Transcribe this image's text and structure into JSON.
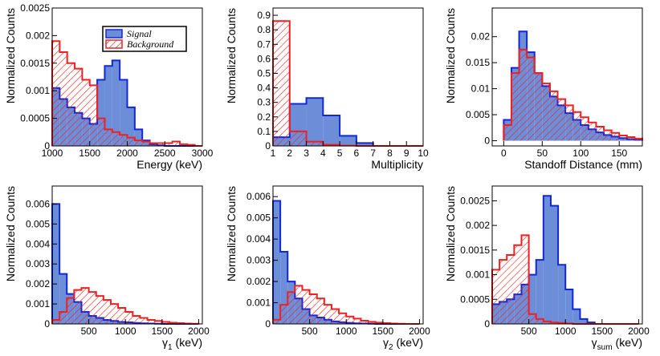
{
  "chart_data": [
    {
      "type": "histogram",
      "xlabel": "Energy (keV)",
      "ylabel": "Normalized Counts",
      "bins": [
        1000,
        1100,
        1200,
        1300,
        1400,
        1500,
        1600,
        1700,
        1800,
        1900,
        2000,
        2100,
        2200,
        2300,
        2400,
        2500,
        2600,
        2700,
        2800,
        2900,
        3000
      ],
      "xlim": [
        1000,
        3000
      ],
      "xticks": [
        1000,
        1500,
        2000,
        2500,
        3000
      ],
      "ylim": [
        0,
        0.0025
      ],
      "yticks": [
        0,
        0.0005,
        0.001,
        0.0015,
        0.002,
        0.0025
      ],
      "legend": "upper center",
      "series": [
        {
          "name": "Signal",
          "color": "#1228d8",
          "fill": "#6c8ed8",
          "values": [
            0.00105,
            0.00085,
            0.0007,
            0.0006,
            0.0005,
            0.0004,
            0.0012,
            0.00145,
            0.00155,
            0.0012,
            0.0007,
            0.0003,
            0.0001,
            3e-05,
            1e-05,
            0,
            0,
            0,
            0,
            0
          ]
        },
        {
          "name": "Background",
          "color": "#f02020",
          "hatch": true,
          "values": [
            0.0019,
            0.0017,
            0.0015,
            0.0014,
            0.0012,
            0.0011,
            0.0005,
            0.0003,
            0.00025,
            0.0002,
            0.00015,
            0.0001,
            8e-05,
            5e-05,
            5e-05,
            5e-05,
            8e-05,
            3e-05,
            2e-05,
            0
          ]
        }
      ]
    },
    {
      "type": "histogram",
      "xlabel": "Multiplicity",
      "ylabel": "Normalized Counts",
      "bins": [
        1,
        2,
        3,
        4,
        5,
        6,
        7,
        8,
        9,
        10
      ],
      "xlim": [
        1,
        10
      ],
      "xticks": [
        1,
        2,
        3,
        4,
        5,
        6,
        7,
        8,
        9,
        10
      ],
      "ylim": [
        0,
        0.95
      ],
      "yticks": [
        0,
        0.1,
        0.2,
        0.3,
        0.4,
        0.5,
        0.6,
        0.7,
        0.8,
        0.9
      ],
      "series": [
        {
          "name": "Signal",
          "color": "#1228d8",
          "fill": "#6c8ed8",
          "values": [
            0.06,
            0.29,
            0.33,
            0.21,
            0.07,
            0.02,
            0,
            0,
            0
          ]
        },
        {
          "name": "Background",
          "color": "#f02020",
          "hatch": true,
          "values": [
            0.86,
            0.1,
            0.03,
            0.008,
            0.002,
            0,
            0,
            0,
            0
          ]
        }
      ]
    },
    {
      "type": "histogram",
      "xlabel": "Standoff Distance (mm)",
      "ylabel": "Normalized Counts",
      "bins": [
        0,
        10,
        20,
        30,
        40,
        50,
        60,
        70,
        80,
        90,
        100,
        110,
        120,
        130,
        140,
        150,
        160,
        170,
        180
      ],
      "xlim": [
        -15,
        180
      ],
      "xticks": [
        0,
        50,
        100,
        150
      ],
      "ylim": [
        -0.001,
        0.0255
      ],
      "yticks": [
        0,
        0.005,
        0.01,
        0.015,
        0.02
      ],
      "series": [
        {
          "name": "Signal",
          "color": "#1228d8",
          "fill": "#6c8ed8",
          "values": [
            0.004,
            0.014,
            0.021,
            0.017,
            0.013,
            0.0105,
            0.0085,
            0.0068,
            0.0053,
            0.004,
            0.003,
            0.0022,
            0.0016,
            0.0011,
            0.0008,
            0.0005,
            0.0003,
            0.0002
          ]
        },
        {
          "name": "Background",
          "color": "#f02020",
          "hatch": true,
          "values": [
            0.003,
            0.013,
            0.0175,
            0.016,
            0.013,
            0.011,
            0.0095,
            0.008,
            0.0068,
            0.0055,
            0.0045,
            0.0035,
            0.0027,
            0.002,
            0.0015,
            0.001,
            0.0007,
            0.0004
          ]
        }
      ]
    },
    {
      "type": "histogram",
      "xlabel": [
        "γ",
        "1",
        "(keV)"
      ],
      "ylabel": "Normalized Counts",
      "bins": [
        0,
        100,
        200,
        300,
        400,
        500,
        600,
        700,
        800,
        900,
        1000,
        1100,
        1200,
        1300,
        1400,
        1500,
        1600,
        1700,
        1800,
        1900,
        2000
      ],
      "xlim": [
        0,
        2050
      ],
      "xticks": [
        500,
        1000,
        1500,
        2000
      ],
      "ylim": [
        0,
        0.0069
      ],
      "yticks": [
        0,
        0.001,
        0.002,
        0.003,
        0.004,
        0.005,
        0.006
      ],
      "series": [
        {
          "name": "Signal",
          "color": "#1228d8",
          "fill": "#6c8ed8",
          "values": [
            0.006,
            0.0025,
            0.0015,
            0.0011,
            0.0006,
            0.0004,
            0.0003,
            0.0002,
            0.00015,
            0.0001,
            8e-05,
            5e-05,
            3e-05,
            2e-05,
            1e-05,
            0,
            0,
            0,
            0,
            0
          ]
        },
        {
          "name": "Background",
          "color": "#f02020",
          "hatch": true,
          "values": [
            0.0002,
            0.0006,
            0.0013,
            0.0017,
            0.0018,
            0.0016,
            0.0014,
            0.0012,
            0.001,
            0.0008,
            0.0006,
            0.0004,
            0.0003,
            0.0002,
            0.00015,
            0.0001,
            6e-05,
            4e-05,
            2e-05,
            1e-05
          ]
        }
      ]
    },
    {
      "type": "histogram",
      "xlabel": [
        "γ",
        "2",
        "(keV)"
      ],
      "ylabel": "Normalized Counts",
      "bins": [
        0,
        100,
        200,
        300,
        400,
        500,
        600,
        700,
        800,
        900,
        1000,
        1100,
        1200,
        1300,
        1400,
        1500,
        1600,
        1700,
        1800,
        1900,
        2000
      ],
      "xlim": [
        0,
        2050
      ],
      "xticks": [
        500,
        1000,
        1500,
        2000
      ],
      "ylim": [
        0,
        0.0065
      ],
      "yticks": [
        0,
        0.001,
        0.002,
        0.003,
        0.004,
        0.005,
        0.006
      ],
      "series": [
        {
          "name": "Signal",
          "color": "#1228d8",
          "fill": "#6c8ed8",
          "values": [
            0.0058,
            0.0034,
            0.002,
            0.0012,
            0.0007,
            0.0004,
            0.0003,
            0.0002,
            0.00012,
            8e-05,
            5e-05,
            3e-05,
            2e-05,
            1e-05,
            0,
            0,
            0,
            0,
            0,
            0
          ]
        },
        {
          "name": "Background",
          "color": "#f02020",
          "hatch": true,
          "values": [
            0.0002,
            0.0009,
            0.0015,
            0.0018,
            0.0016,
            0.0014,
            0.0012,
            0.0009,
            0.0007,
            0.0005,
            0.00035,
            0.00025,
            0.00015,
            0.0001,
            6e-05,
            4e-05,
            2e-05,
            1e-05,
            0,
            0
          ]
        }
      ]
    },
    {
      "type": "histogram",
      "xlabel": [
        "γ",
        "sum",
        "(keV)"
      ],
      "ylabel": "Normalized Counts",
      "bins": [
        0,
        100,
        200,
        300,
        400,
        500,
        600,
        700,
        800,
        900,
        1000,
        1100,
        1200,
        1300,
        1400,
        1500,
        1600,
        1700,
        1800,
        1900,
        2000
      ],
      "xlim": [
        0,
        2050
      ],
      "xticks": [
        500,
        1000,
        1500,
        2000
      ],
      "ylim": [
        0,
        0.0028
      ],
      "yticks": [
        0,
        0.0005,
        0.001,
        0.0015,
        0.002,
        0.0025
      ],
      "series": [
        {
          "name": "Signal",
          "color": "#1228d8",
          "fill": "#6c8ed8",
          "values": [
            0.0004,
            0.00045,
            0.0005,
            0.0006,
            0.0008,
            0.001,
            0.0013,
            0.0026,
            0.0024,
            0.0012,
            0.0007,
            0.0003,
            0.0001,
            3e-05,
            0,
            0,
            0,
            0,
            0,
            0
          ]
        },
        {
          "name": "Background",
          "color": "#f02020",
          "hatch": true,
          "values": [
            0.0011,
            0.0013,
            0.0014,
            0.0016,
            0.0018,
            0.0002,
            0.0001,
            5e-05,
            3e-05,
            2e-05,
            1e-05,
            0,
            0,
            0,
            0,
            0,
            0,
            0,
            0,
            0
          ]
        }
      ]
    }
  ]
}
